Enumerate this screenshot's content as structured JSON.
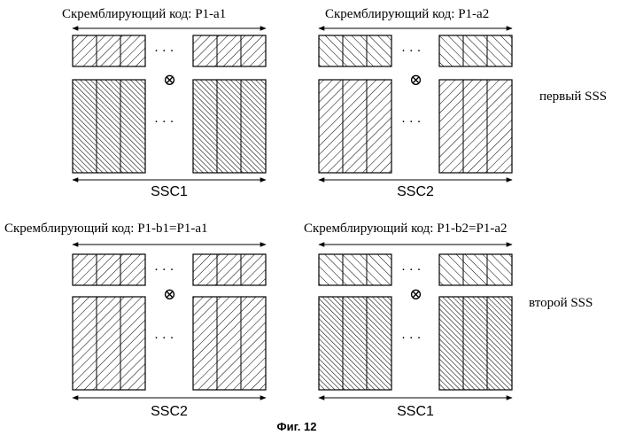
{
  "figure": {
    "caption": "Фиг. 12"
  },
  "rows": [
    {
      "row_label": "первый SSS",
      "blocks": [
        {
          "code_label": "Скремблирующий код: P1-a1",
          "bottom_label": "SSC1",
          "scrambling_hatch": "forward",
          "sequence_hatch": "backward-dense"
        },
        {
          "code_label": "Скремблирующий код: P1-a2",
          "bottom_label": "SSC2",
          "scrambling_hatch": "backward",
          "sequence_hatch": "forward"
        }
      ]
    },
    {
      "row_label": "второй SSS",
      "blocks": [
        {
          "code_label": "Скремблирующий код: P1-b1=P1-a1",
          "bottom_label": "SSC2",
          "scrambling_hatch": "forward",
          "sequence_hatch": "forward"
        },
        {
          "code_label": "Скремблирующий код: P1-b2=P1-a2",
          "bottom_label": "SSC1",
          "scrambling_hatch": "backward",
          "sequence_hatch": "backward-dense"
        }
      ]
    }
  ],
  "symbols": {
    "ellipsis": "· · ·",
    "multiply": "⊗"
  }
}
